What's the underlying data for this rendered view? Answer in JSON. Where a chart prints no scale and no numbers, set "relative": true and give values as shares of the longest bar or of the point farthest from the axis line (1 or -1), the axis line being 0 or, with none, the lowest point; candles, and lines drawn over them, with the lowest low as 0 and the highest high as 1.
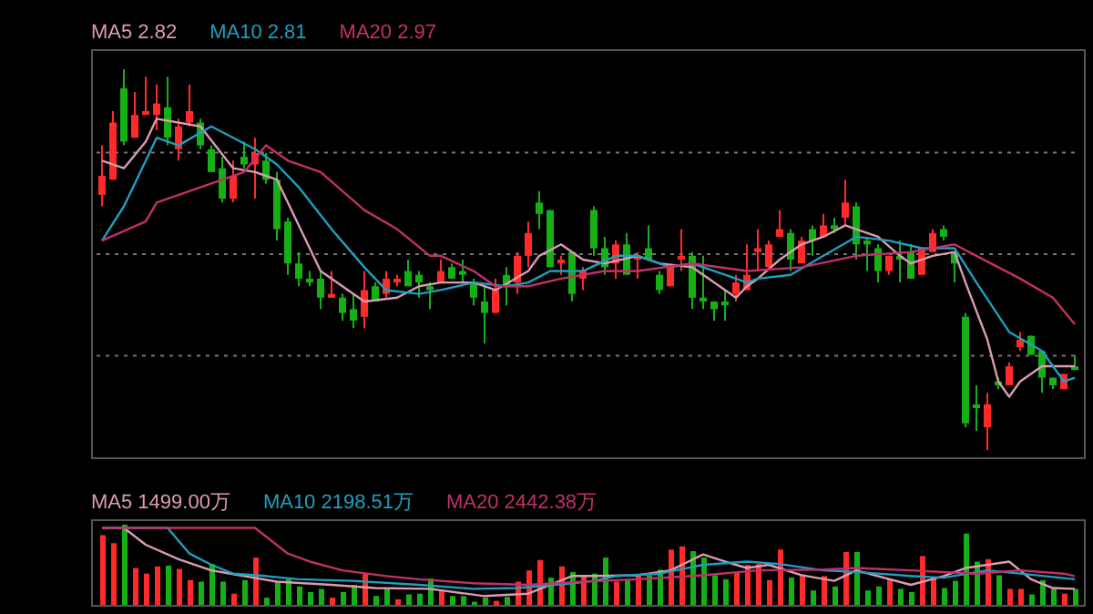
{
  "chart_data": [
    {
      "type": "candlestick",
      "relative": true,
      "grid": "y",
      "legend": "top left",
      "categories": [
        null,
        null,
        null,
        null,
        null,
        null,
        null,
        null,
        null,
        null,
        null,
        null,
        null,
        null,
        null,
        null,
        null,
        null,
        null,
        null,
        null,
        null,
        null,
        null,
        null,
        null,
        null,
        null,
        null,
        null,
        null,
        null,
        null,
        null,
        null,
        null,
        null,
        null,
        null,
        null,
        null,
        null,
        null,
        null,
        null,
        null,
        null,
        null,
        null,
        null,
        null,
        null,
        null,
        null,
        null,
        null,
        null,
        null,
        null,
        null,
        null,
        null,
        null,
        null,
        null,
        null,
        null,
        null,
        null,
        null,
        null,
        null,
        null,
        null,
        null,
        null,
        null,
        null,
        null,
        null,
        null,
        null,
        null,
        null,
        null,
        null,
        null,
        null,
        null,
        null
      ],
      "ohlc": [
        [
          0.67,
          0.8,
          0.64,
          0.72
        ],
        [
          0.71,
          0.89,
          0.71,
          0.86
        ],
        [
          0.95,
          1,
          0.8,
          0.81
        ],
        [
          0.82,
          0.94,
          0.82,
          0.88
        ],
        [
          0.88,
          0.98,
          0.88,
          0.89
        ],
        [
          0.88,
          0.96,
          0.84,
          0.91
        ],
        [
          0.9,
          0.98,
          0.8,
          0.82
        ],
        [
          0.79,
          0.87,
          0.76,
          0.85
        ],
        [
          0.86,
          0.96,
          0.85,
          0.89
        ],
        [
          0.86,
          0.87,
          0.79,
          0.8
        ],
        [
          0.79,
          0.8,
          0.73,
          0.73
        ],
        [
          0.74,
          0.77,
          0.65,
          0.66
        ],
        [
          0.66,
          0.76,
          0.65,
          0.72
        ],
        [
          0.77,
          0.81,
          0.74,
          0.75
        ],
        [
          0.75,
          0.82,
          0.66,
          0.78
        ],
        [
          0.76,
          0.78,
          0.7,
          0.71
        ],
        [
          0.71,
          0.73,
          0.55,
          0.58
        ],
        [
          0.6,
          0.61,
          0.46,
          0.49
        ],
        [
          0.49,
          0.52,
          0.43,
          0.45
        ],
        [
          0.45,
          0.47,
          0.43,
          0.44
        ],
        [
          0.45,
          0.47,
          0.37,
          0.4
        ],
        [
          0.4,
          0.47,
          0.4,
          0.41
        ],
        [
          0.4,
          0.41,
          0.34,
          0.36
        ],
        [
          0.37,
          0.41,
          0.32,
          0.34
        ],
        [
          0.35,
          0.47,
          0.32,
          0.42
        ],
        [
          0.43,
          0.44,
          0.39,
          0.39
        ],
        [
          0.41,
          0.47,
          0.4,
          0.45
        ],
        [
          0.44,
          0.46,
          0.43,
          0.45
        ],
        [
          0.47,
          0.5,
          0.43,
          0.43
        ],
        [
          0.46,
          0.47,
          0.4,
          0.44
        ],
        [
          0.43,
          0.44,
          0.37,
          0.42
        ],
        [
          0.44,
          0.5,
          0.44,
          0.47
        ],
        [
          0.48,
          0.49,
          0.45,
          0.45
        ],
        [
          0.47,
          0.5,
          0.44,
          0.46
        ],
        [
          0.44,
          0.45,
          0.38,
          0.4
        ],
        [
          0.39,
          0.43,
          0.28,
          0.36
        ],
        [
          0.36,
          0.45,
          0.36,
          0.42
        ],
        [
          0.46,
          0.48,
          0.38,
          0.43
        ],
        [
          0.44,
          0.52,
          0.41,
          0.51
        ],
        [
          0.51,
          0.6,
          0.48,
          0.57
        ],
        [
          0.65,
          0.68,
          0.58,
          0.62
        ],
        [
          0.63,
          0.63,
          0.48,
          0.48
        ],
        [
          0.49,
          0.51,
          0.46,
          0.5
        ],
        [
          0.52,
          0.52,
          0.39,
          0.41
        ],
        [
          0.45,
          0.48,
          0.42,
          0.47
        ],
        [
          0.63,
          0.64,
          0.51,
          0.53
        ],
        [
          0.53,
          0.56,
          0.46,
          0.48
        ],
        [
          0.49,
          0.55,
          0.45,
          0.54
        ],
        [
          0.54,
          0.57,
          0.46,
          0.46
        ],
        [
          0.5,
          0.52,
          0.45,
          0.51
        ],
        [
          0.53,
          0.59,
          0.5,
          0.5
        ],
        [
          0.46,
          0.47,
          0.41,
          0.42
        ],
        [
          0.43,
          0.48,
          0.43,
          0.48
        ],
        [
          0.5,
          0.58,
          0.47,
          0.51
        ],
        [
          0.51,
          0.52,
          0.37,
          0.4
        ],
        [
          0.4,
          0.51,
          0.37,
          0.39
        ],
        [
          0.39,
          0.39,
          0.34,
          0.37
        ],
        [
          0.39,
          0.42,
          0.34,
          0.38
        ],
        [
          0.41,
          0.46,
          0.39,
          0.44
        ],
        [
          0.42,
          0.54,
          0.42,
          0.46
        ],
        [
          0.52,
          0.58,
          0.47,
          0.53
        ],
        [
          0.48,
          0.55,
          0.48,
          0.54
        ],
        [
          0.56,
          0.63,
          0.56,
          0.58
        ],
        [
          0.57,
          0.58,
          0.47,
          0.5
        ],
        [
          0.49,
          0.56,
          0.49,
          0.55
        ],
        [
          0.58,
          0.59,
          0.51,
          0.55
        ],
        [
          0.56,
          0.62,
          0.56,
          0.59
        ],
        [
          0.59,
          0.61,
          0.57,
          0.58
        ],
        [
          0.61,
          0.71,
          0.59,
          0.65
        ],
        [
          0.64,
          0.65,
          0.5,
          0.54
        ],
        [
          0.55,
          0.56,
          0.47,
          0.54
        ],
        [
          0.53,
          0.54,
          0.44,
          0.47
        ],
        [
          0.47,
          0.51,
          0.46,
          0.51
        ],
        [
          0.51,
          0.55,
          0.44,
          0.5
        ],
        [
          0.52,
          0.54,
          0.45,
          0.45
        ],
        [
          0.46,
          0.53,
          0.46,
          0.53
        ],
        [
          0.52,
          0.58,
          0.52,
          0.57
        ],
        [
          0.58,
          0.59,
          0.55,
          0.56
        ],
        [
          0.52,
          0.52,
          0.44,
          0.49
        ],
        [
          0.35,
          0.36,
          0.06,
          0.07
        ],
        [
          0.12,
          0.17,
          0.05,
          0.11
        ],
        [
          0.06,
          0.15,
          0,
          0.12
        ],
        [
          0.18,
          0.19,
          0.16,
          0.17
        ],
        [
          0.17,
          0.23,
          0.17,
          0.22
        ],
        [
          0.27,
          0.31,
          0.26,
          0.29
        ],
        [
          0.3,
          0.3,
          0.25,
          0.25
        ],
        [
          0.26,
          0.26,
          0.15,
          0.19
        ],
        [
          0.19,
          0.19,
          0.16,
          0.17
        ],
        [
          0.16,
          0.2,
          0.16,
          0.2
        ],
        [
          0.22,
          0.25,
          0.21,
          0.21
        ]
      ],
      "series": [
        {
          "type": "line",
          "name": "MA5 2.82",
          "color": "#d99cb2",
          "values": [
            0.76,
            null,
            0.74,
            null,
            0.81,
            0.87,
            null,
            null,
            null,
            0.85,
            null,
            null,
            0.74,
            null,
            0.73,
            null,
            0.71,
            null,
            null,
            0.53,
            0.47,
            null,
            null,
            null,
            0.39,
            null,
            null,
            0.4,
            null,
            0.43,
            null,
            0.44,
            null,
            null,
            0.44,
            null,
            0.42,
            null,
            null,
            0.47,
            0.51,
            null,
            0.54,
            null,
            0.5,
            null,
            0.49,
            null,
            null,
            0.51,
            null,
            0.49,
            null,
            null,
            0.48,
            null,
            0.44,
            null,
            0.4,
            0.43,
            0.45,
            null,
            0.5,
            null,
            0.54,
            null,
            0.56,
            null,
            0.59,
            0.58,
            null,
            0.56,
            null,
            0.51,
            0.49,
            null,
            0.51,
            null,
            0.52,
            0.44,
            null,
            0.29,
            0.18,
            0.14,
            0.18,
            null,
            0.22,
            null,
            0.22,
            0.22
          ]
        },
        {
          "type": "line",
          "name": "MA10 2.81",
          "color": "#1e9fbf",
          "values": [
            0.55,
            null,
            0.64,
            null,
            null,
            0.82,
            null,
            0.8,
            null,
            null,
            0.85,
            null,
            0.82,
            null,
            0.79,
            null,
            0.75,
            null,
            0.69,
            null,
            null,
            0.58,
            null,
            null,
            0.48,
            null,
            0.42,
            null,
            null,
            0.41,
            null,
            0.42,
            null,
            null,
            0.44,
            null,
            null,
            0.43,
            null,
            0.44,
            null,
            0.47,
            null,
            null,
            0.47,
            null,
            null,
            0.51,
            null,
            0.51,
            null,
            null,
            0.48,
            null,
            0.49,
            null,
            null,
            0.46,
            null,
            0.44,
            0.45,
            null,
            null,
            0.46,
            null,
            null,
            0.51,
            null,
            null,
            0.56,
            null,
            null,
            0.55,
            null,
            null,
            0.53,
            null,
            null,
            0.53,
            null,
            0.44,
            null,
            null,
            0.31,
            null,
            null,
            0.26,
            null,
            0.18,
            0.19
          ]
        },
        {
          "type": "line",
          "name": "MA20 2.97",
          "color": "#c2306a",
          "values": [
            0.55,
            null,
            null,
            null,
            0.6,
            0.65,
            null,
            null,
            null,
            0.69,
            null,
            null,
            null,
            0.73,
            null,
            0.8,
            null,
            0.76,
            null,
            null,
            0.73,
            null,
            null,
            null,
            0.63,
            null,
            null,
            0.58,
            null,
            null,
            0.51,
            0.51,
            null,
            null,
            0.47,
            null,
            0.43,
            null,
            null,
            0.43,
            null,
            null,
            0.45,
            null,
            null,
            null,
            0.47,
            null,
            null,
            0.47,
            null,
            null,
            null,
            null,
            0.49,
            null,
            null,
            null,
            null,
            0.47,
            null,
            null,
            null,
            null,
            0.48,
            null,
            null,
            null,
            null,
            0.51,
            null,
            null,
            null,
            null,
            0.52,
            null,
            null,
            null,
            0.54,
            null,
            0.51,
            null,
            null,
            null,
            0.45,
            null,
            null,
            0.4,
            null,
            0.33
          ]
        }
      ]
    },
    {
      "type": "bar",
      "relative": true,
      "legend": "top left",
      "categories": [
        null,
        null,
        null,
        null,
        null,
        null,
        null,
        null,
        null,
        null,
        null,
        null,
        null,
        null,
        null,
        null,
        null,
        null,
        null,
        null,
        null,
        null,
        null,
        null,
        null,
        null,
        null,
        null,
        null,
        null,
        null,
        null,
        null,
        null,
        null,
        null,
        null,
        null,
        null,
        null,
        null,
        null,
        null,
        null,
        null,
        null,
        null,
        null,
        null,
        null,
        null,
        null,
        null,
        null,
        null,
        null,
        null,
        null,
        null,
        null,
        null,
        null,
        null,
        null,
        null,
        null,
        null,
        null,
        null,
        null,
        null,
        null,
        null,
        null,
        null,
        null,
        null,
        null,
        null,
        null,
        null,
        null,
        null,
        null,
        null,
        null,
        null,
        null,
        null,
        null
      ],
      "series": [
        {
          "type": "bar",
          "values": [
            0.87,
            0.77,
            1,
            0.46,
            0.39,
            0.48,
            0.49,
            0.45,
            0.31,
            0.29,
            0.51,
            0.29,
            0.14,
            0.31,
            0.59,
            0.09,
            0.29,
            0.32,
            0.23,
            0.16,
            0.2,
            0.09,
            0.16,
            0.25,
            0.39,
            0.11,
            0.2,
            0.07,
            0.13,
            0.14,
            0.33,
            0.17,
            0.11,
            0.11,
            0.04,
            0.09,
            0.05,
            0.1,
            0.29,
            0.43,
            0.56,
            0.34,
            0.48,
            0.41,
            0.37,
            0.39,
            0.59,
            0.29,
            0.31,
            0.37,
            0.37,
            0.44,
            0.69,
            0.73,
            0.67,
            0.59,
            0.37,
            0.32,
            0.41,
            0.5,
            0.51,
            0.31,
            0.69,
            0.34,
            0.37,
            0.18,
            0.36,
            0.23,
            0.66,
            0.66,
            0.18,
            0.23,
            0.32,
            0.2,
            0.16,
            0.61,
            0.34,
            0.21,
            0.3,
            0.89,
            0.54,
            0.57,
            0.37,
            0.2,
            0.2,
            0.13,
            0.31,
            0.2,
            0.14,
            0.2
          ],
          "colors": [
            "#ff2a2a",
            "#ff2a2a",
            "#16b016",
            "#ff2a2a",
            "#ff2a2a",
            "#ff2a2a",
            "#16b016",
            "#ff2a2a",
            "#ff2a2a",
            "#16b016",
            "#16b016",
            "#16b016",
            "#ff2a2a",
            "#16b016",
            "#ff2a2a",
            "#16b016",
            "#16b016",
            "#16b016",
            "#16b016",
            "#16b016",
            "#16b016",
            "#ff2a2a",
            "#16b016",
            "#16b016",
            "#ff2a2a",
            "#16b016",
            "#16b016",
            "#ff2a2a",
            "#16b016",
            "#16b016",
            "#16b016",
            "#ff2a2a",
            "#16b016",
            "#16b016",
            "#16b016",
            "#16b016",
            "#ff2a2a",
            "#16b016",
            "#ff2a2a",
            "#ff2a2a",
            "#ff2a2a",
            "#16b016",
            "#ff2a2a",
            "#16b016",
            "#ff2a2a",
            "#16b016",
            "#16b016",
            "#ff2a2a",
            "#16b016",
            "#ff2a2a",
            "#16b016",
            "#16b016",
            "#ff2a2a",
            "#ff2a2a",
            "#16b016",
            "#16b016",
            "#16b016",
            "#16b016",
            "#ff2a2a",
            "#ff2a2a",
            "#ff2a2a",
            "#ff2a2a",
            "#ff2a2a",
            "#16b016",
            "#ff2a2a",
            "#16b016",
            "#ff2a2a",
            "#16b016",
            "#ff2a2a",
            "#16b016",
            "#16b016",
            "#16b016",
            "#ff2a2a",
            "#16b016",
            "#16b016",
            "#ff2a2a",
            "#ff2a2a",
            "#16b016",
            "#16b016",
            "#16b016",
            "#16b016",
            "#ff2a2a",
            "#16b016",
            "#ff2a2a",
            "#ff2a2a",
            "#16b016",
            "#16b016",
            "#16b016",
            "#ff2a2a",
            "#16b016"
          ]
        },
        {
          "type": "line",
          "name": "MA5 1499.00万",
          "color": "#d99cb2",
          "values": [
            0.96,
            null,
            0.96,
            null,
            0.75,
            null,
            null,
            0.57,
            null,
            null,
            0.43,
            null,
            null,
            0.36,
            null,
            null,
            0.29,
            null,
            null,
            null,
            null,
            0.25,
            null,
            null,
            null,
            0.21,
            null,
            null,
            null,
            null,
            0.2,
            null,
            null,
            null,
            null,
            0.11,
            null,
            null,
            null,
            0.14,
            null,
            null,
            null,
            0.36,
            null,
            0.36,
            null,
            null,
            null,
            0.37,
            null,
            null,
            0.43,
            null,
            null,
            0.63,
            null,
            0.54,
            null,
            0.46,
            null,
            0.5,
            null,
            null,
            0.37,
            null,
            null,
            0.3,
            null,
            0.43,
            null,
            null,
            null,
            null,
            0.25,
            null,
            null,
            0.36,
            null,
            0.46,
            null,
            null,
            null,
            0.54,
            null,
            0.32,
            null,
            0.21,
            null,
            0.2
          ]
        },
        {
          "type": "line",
          "name": "MA10 2198.51万",
          "color": "#1e9fbf",
          "values": [
            0.96,
            null,
            null,
            null,
            null,
            null,
            0.96,
            null,
            0.64,
            null,
            0.5,
            null,
            0.39,
            null,
            null,
            0.36,
            null,
            null,
            0.32,
            null,
            null,
            null,
            null,
            0.3,
            null,
            null,
            null,
            null,
            null,
            0.25,
            null,
            null,
            null,
            null,
            0.2,
            null,
            null,
            null,
            0.21,
            null,
            null,
            null,
            null,
            0.27,
            null,
            0.3,
            null,
            0.36,
            null,
            null,
            null,
            0.39,
            null,
            null,
            null,
            0.5,
            null,
            null,
            null,
            0.54,
            null,
            null,
            0.51,
            null,
            null,
            null,
            0.43,
            null,
            null,
            0.41,
            null,
            null,
            null,
            null,
            0.36,
            null,
            null,
            0.34,
            null,
            null,
            null,
            0.43,
            null,
            null,
            0.39,
            null,
            null,
            null,
            null,
            0.32
          ]
        },
        {
          "type": "line",
          "name": "MA20 2442.38万",
          "color": "#c2306a",
          "values": [
            0.96,
            null,
            null,
            null,
            null,
            null,
            null,
            null,
            null,
            null,
            null,
            null,
            null,
            null,
            0.96,
            null,
            null,
            0.64,
            null,
            0.54,
            null,
            null,
            0.43,
            null,
            null,
            null,
            0.36,
            null,
            null,
            0.32,
            null,
            null,
            null,
            null,
            0.27,
            null,
            null,
            null,
            null,
            0.25,
            null,
            null,
            null,
            null,
            0.29,
            null,
            null,
            null,
            null,
            0.32,
            null,
            null,
            null,
            null,
            null,
            0.37,
            null,
            null,
            null,
            null,
            0.43,
            null,
            null,
            null,
            null,
            null,
            0.44,
            null,
            null,
            0.46,
            null,
            null,
            null,
            null,
            0.43,
            null,
            null,
            null,
            null,
            null,
            0.39,
            null,
            null,
            null,
            0.43,
            null,
            null,
            null,
            0.39,
            0.36
          ]
        }
      ]
    }
  ]
}
